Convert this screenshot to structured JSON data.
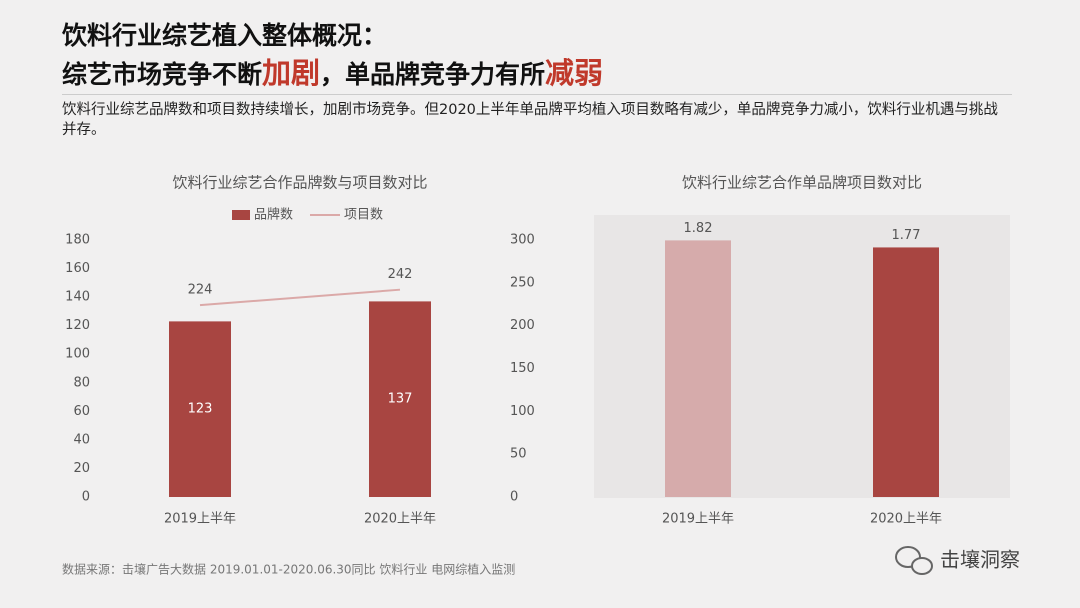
{
  "header": {
    "title_line1": "饮料行业综艺植入整体概况：",
    "title_line2": [
      {
        "text": "综艺市场竞争不断"
      },
      {
        "text": "加剧",
        "highlight": true
      },
      {
        "text": "，单品牌竞争力有所"
      },
      {
        "text": "减弱",
        "highlight": true
      }
    ],
    "description": "饮料行业综艺品牌数和项目数持续增长，加剧市场竞争。但2020上半年单品牌平均植入项目数略有减少，单品牌竞争力减小，饮料行业机遇与挑战并存。"
  },
  "chart_data": [
    {
      "type": "bar_line",
      "title": "饮料行业综艺合作品牌数与项目数对比",
      "categories": [
        "2019上半年",
        "2020上半年"
      ],
      "series": [
        {
          "name": "品牌数",
          "type": "bar",
          "color": "#a84541",
          "values": [
            123,
            137
          ]
        },
        {
          "name": "项目数",
          "type": "line",
          "color": "#dba9a8",
          "axis": "y2",
          "values": [
            224,
            242
          ]
        }
      ],
      "ylim": [
        0,
        180
      ],
      "yticks": [
        0,
        20,
        40,
        60,
        80,
        100,
        120,
        140,
        160,
        180
      ],
      "y2lim": [
        0,
        300
      ],
      "y2ticks": [
        0,
        50,
        100,
        150,
        200,
        250,
        300
      ],
      "legend": "top"
    },
    {
      "type": "bar",
      "title": "饮料行业综艺合作单品牌项目数对比",
      "categories": [
        "2019上半年",
        "2020上半年"
      ],
      "values": [
        1.82,
        1.77
      ],
      "colors": [
        "#d6abab",
        "#a84541"
      ],
      "ylim": [
        0,
        2
      ]
    }
  ],
  "footer": {
    "source": "数据来源：击壤广告大数据 2019.01.01-2020.06.30同比 饮料行业 电网综植入监测",
    "brand": "击壤洞察"
  }
}
